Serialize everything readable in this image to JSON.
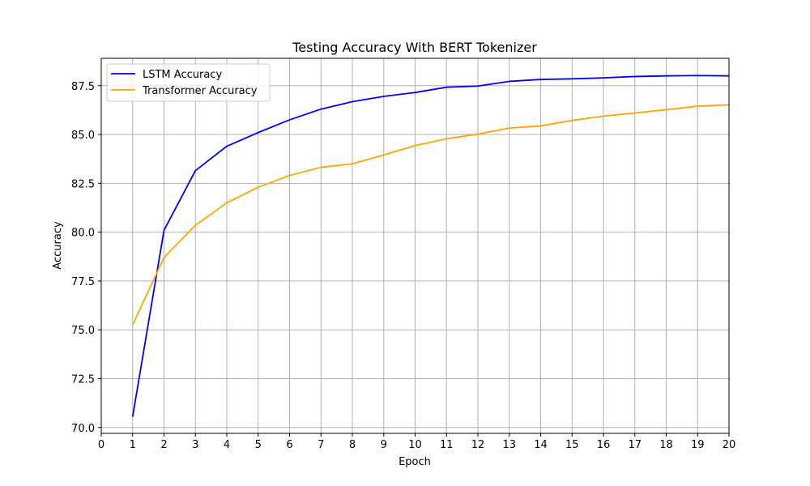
{
  "chart_data": {
    "type": "line",
    "title": "Testing Accuracy With BERT Tokenizer",
    "xlabel": "Epoch",
    "ylabel": "Accuracy",
    "xlim": [
      0,
      20
    ],
    "ylim": [
      69.7,
      88.9
    ],
    "grid": true,
    "legend_position": "top-left",
    "x_ticks": [
      0,
      1,
      2,
      3,
      4,
      5,
      6,
      7,
      8,
      9,
      10,
      11,
      12,
      13,
      14,
      15,
      16,
      17,
      18,
      19,
      20
    ],
    "x_tick_labels": [
      "0",
      "1",
      "2",
      "3",
      "4",
      "5",
      "6",
      "7",
      "8",
      "9",
      "10",
      "11",
      "12",
      "13",
      "14",
      "15",
      "16",
      "17",
      "18",
      "19",
      "20"
    ],
    "y_ticks": [
      70.0,
      72.5,
      75.0,
      77.5,
      80.0,
      82.5,
      85.0,
      87.5
    ],
    "y_tick_labels": [
      "70.0",
      "72.5",
      "75.0",
      "77.5",
      "80.0",
      "82.5",
      "85.0",
      "87.5"
    ],
    "x": [
      1,
      2,
      3,
      4,
      5,
      6,
      7,
      8,
      9,
      10,
      11,
      12,
      13,
      14,
      15,
      16,
      17,
      18,
      19,
      20
    ],
    "series": [
      {
        "name": "LSTM Accuracy",
        "color": "#0000ff",
        "values": [
          70.55,
          80.1,
          83.15,
          84.4,
          85.1,
          85.75,
          86.3,
          86.68,
          86.95,
          87.15,
          87.42,
          87.48,
          87.72,
          87.82,
          87.85,
          87.9,
          87.97,
          88.0,
          88.02,
          88.0
        ]
      },
      {
        "name": "Transformer Accuracy",
        "color": "#ffa500",
        "values": [
          75.25,
          78.7,
          80.35,
          81.5,
          82.3,
          82.9,
          83.32,
          83.5,
          83.95,
          84.43,
          84.78,
          85.02,
          85.33,
          85.44,
          85.72,
          85.94,
          86.1,
          86.27,
          86.45,
          86.52
        ]
      }
    ]
  }
}
